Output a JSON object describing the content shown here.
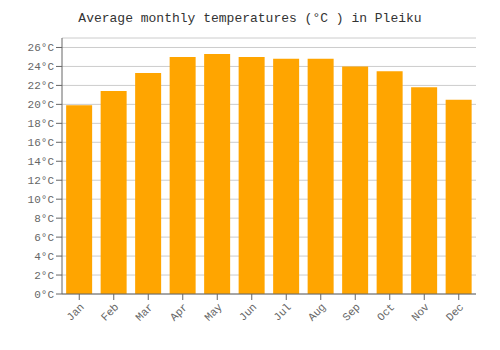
{
  "chart_data": {
    "type": "bar",
    "title": "Average monthly temperatures (°C ) in Pleiku",
    "categories": [
      "Jan",
      "Feb",
      "Mar",
      "Apr",
      "May",
      "Jun",
      "Jul",
      "Aug",
      "Sep",
      "Oct",
      "Nov",
      "Dec"
    ],
    "values": [
      19.9,
      21.4,
      23.3,
      25.0,
      25.3,
      25.0,
      24.8,
      24.8,
      24.0,
      23.5,
      21.8,
      20.5
    ],
    "color": "#FFA500",
    "ylim": [
      0,
      27
    ],
    "yticks": [
      {
        "value": 0,
        "label": "0°C"
      },
      {
        "value": 2,
        "label": "2°C"
      },
      {
        "value": 4,
        "label": "4°C"
      },
      {
        "value": 6,
        "label": "6°C"
      },
      {
        "value": 8,
        "label": "8°C"
      },
      {
        "value": 10,
        "label": "10°C"
      },
      {
        "value": 12,
        "label": "12°C"
      },
      {
        "value": 14,
        "label": "14°C"
      },
      {
        "value": 16,
        "label": "16°C"
      },
      {
        "value": 18,
        "label": "18°C"
      },
      {
        "value": 20,
        "label": "20°C"
      },
      {
        "value": 22,
        "label": "22°C"
      },
      {
        "value": 24,
        "label": "24°C"
      },
      {
        "value": 26,
        "label": "26°C"
      }
    ],
    "grid": true
  }
}
